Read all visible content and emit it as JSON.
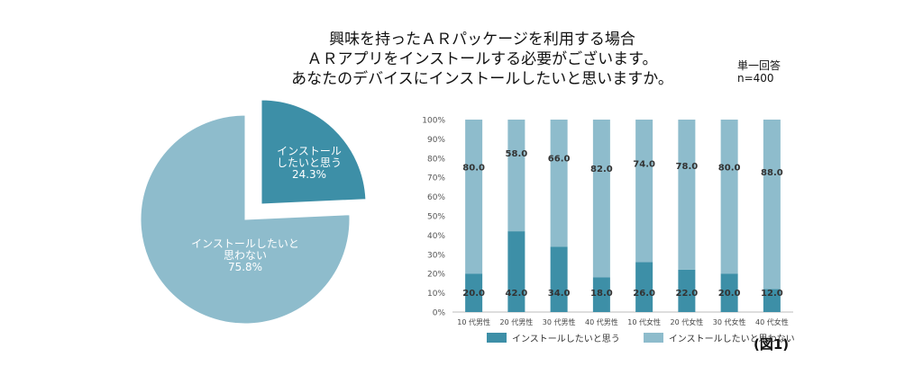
{
  "title_lines": [
    "興味を持ったＡＲパッケージを利用する場合",
    "ＡＲアプリをインストールする必要がございます。",
    "あなたのデバイスにインストールしたいと思いますか。"
  ],
  "note_lines": [
    "単一回答",
    "n=400"
  ],
  "figure_label": "(図1)",
  "colors": {
    "install": "#3d8fa7",
    "no_install": "#8ebccc"
  },
  "chart_data": [
    {
      "type": "pie",
      "slices": [
        {
          "label_lines": [
            "インストール",
            "したいと思う"
          ],
          "value": 24.3,
          "display": "24.3%"
        },
        {
          "label_lines": [
            "インストールしたいと",
            "思わない"
          ],
          "value": 75.8,
          "display": "75.8%"
        }
      ]
    },
    {
      "type": "bar",
      "stacked": true,
      "categories": [
        "10 代男性",
        "20 代男性",
        "30 代男性",
        "40 代男性",
        "10 代女性",
        "20 代女性",
        "30 代女性",
        "40 代女性"
      ],
      "ylim": [
        0,
        100
      ],
      "yticks": [
        "0%",
        "10%",
        "20%",
        "30%",
        "40%",
        "50%",
        "60%",
        "70%",
        "80%",
        "90%",
        "100%"
      ],
      "series": [
        {
          "name": "インストールしたいと思う",
          "values": [
            20.0,
            42.0,
            34.0,
            18.0,
            26.0,
            22.0,
            20.0,
            12.0
          ],
          "labels": [
            "20.0",
            "42.0",
            "34.0",
            "18.0",
            "26.0",
            "22.0",
            "20.0",
            "12.0"
          ]
        },
        {
          "name": "インストールしたいと思わない",
          "values": [
            80.0,
            58.0,
            66.0,
            82.0,
            74.0,
            78.0,
            80.0,
            88.0
          ],
          "labels": [
            "80.0",
            "58.0",
            "66.0",
            "82.0",
            "74.0",
            "78.0",
            "80.0",
            "88.0"
          ]
        }
      ],
      "grid": false,
      "legend": "bottom"
    }
  ]
}
